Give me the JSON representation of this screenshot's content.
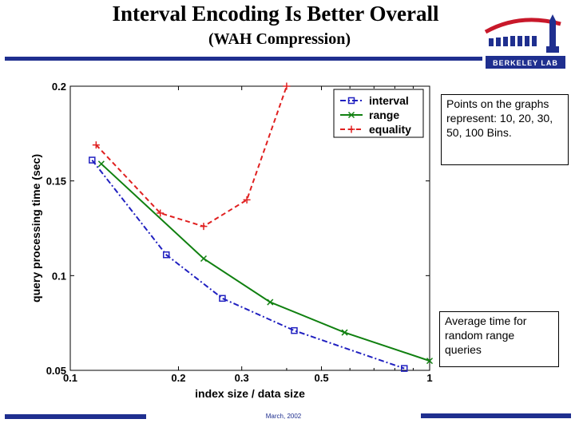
{
  "slide": {
    "title": "Interval Encoding Is Better Overall",
    "subtitle": "(WAH Compression)",
    "footer_date": "March, 2002",
    "logo_text": "BERKELEY LAB",
    "note_bins": "Points on the graphs represent: 10, 20, 30, 50, 100 Bins.",
    "note_average": "Average time for random range queries",
    "accent_color": "#1f2f8f"
  },
  "chart_data": {
    "type": "line",
    "xlabel": "index size / data size",
    "ylabel": "query processing time (sec)",
    "xscale": "log",
    "xlim": [
      0.1,
      1
    ],
    "ylim": [
      0.05,
      0.2
    ],
    "xticks": [
      0.1,
      0.2,
      0.3,
      0.5,
      1
    ],
    "xtick_labels": [
      "0.1",
      "0.2",
      "0.3",
      "0.5",
      "1"
    ],
    "yticks": [
      0.05,
      0.1,
      0.15,
      0.2
    ],
    "ytick_labels": [
      "0.05",
      "0.1",
      "0.15",
      "0.2"
    ],
    "grid": false,
    "legend_position": "top-right",
    "series": [
      {
        "name": "interval",
        "color": "#2020c0",
        "marker": "square",
        "dash": "dashdot",
        "x": [
          0.115,
          0.185,
          0.265,
          0.42,
          0.85
        ],
        "y": [
          0.161,
          0.111,
          0.088,
          0.071,
          0.051
        ]
      },
      {
        "name": "range",
        "color": "#108010",
        "marker": "x",
        "dash": "solid",
        "x": [
          0.122,
          0.235,
          0.36,
          0.58,
          1.0
        ],
        "y": [
          0.159,
          0.109,
          0.086,
          0.07,
          0.055
        ]
      },
      {
        "name": "equality",
        "color": "#e02020",
        "marker": "plus",
        "dash": "dashed",
        "x": [
          0.118,
          0.178,
          0.235,
          0.31,
          0.4
        ],
        "y": [
          0.169,
          0.133,
          0.126,
          0.14,
          0.2
        ]
      }
    ]
  }
}
